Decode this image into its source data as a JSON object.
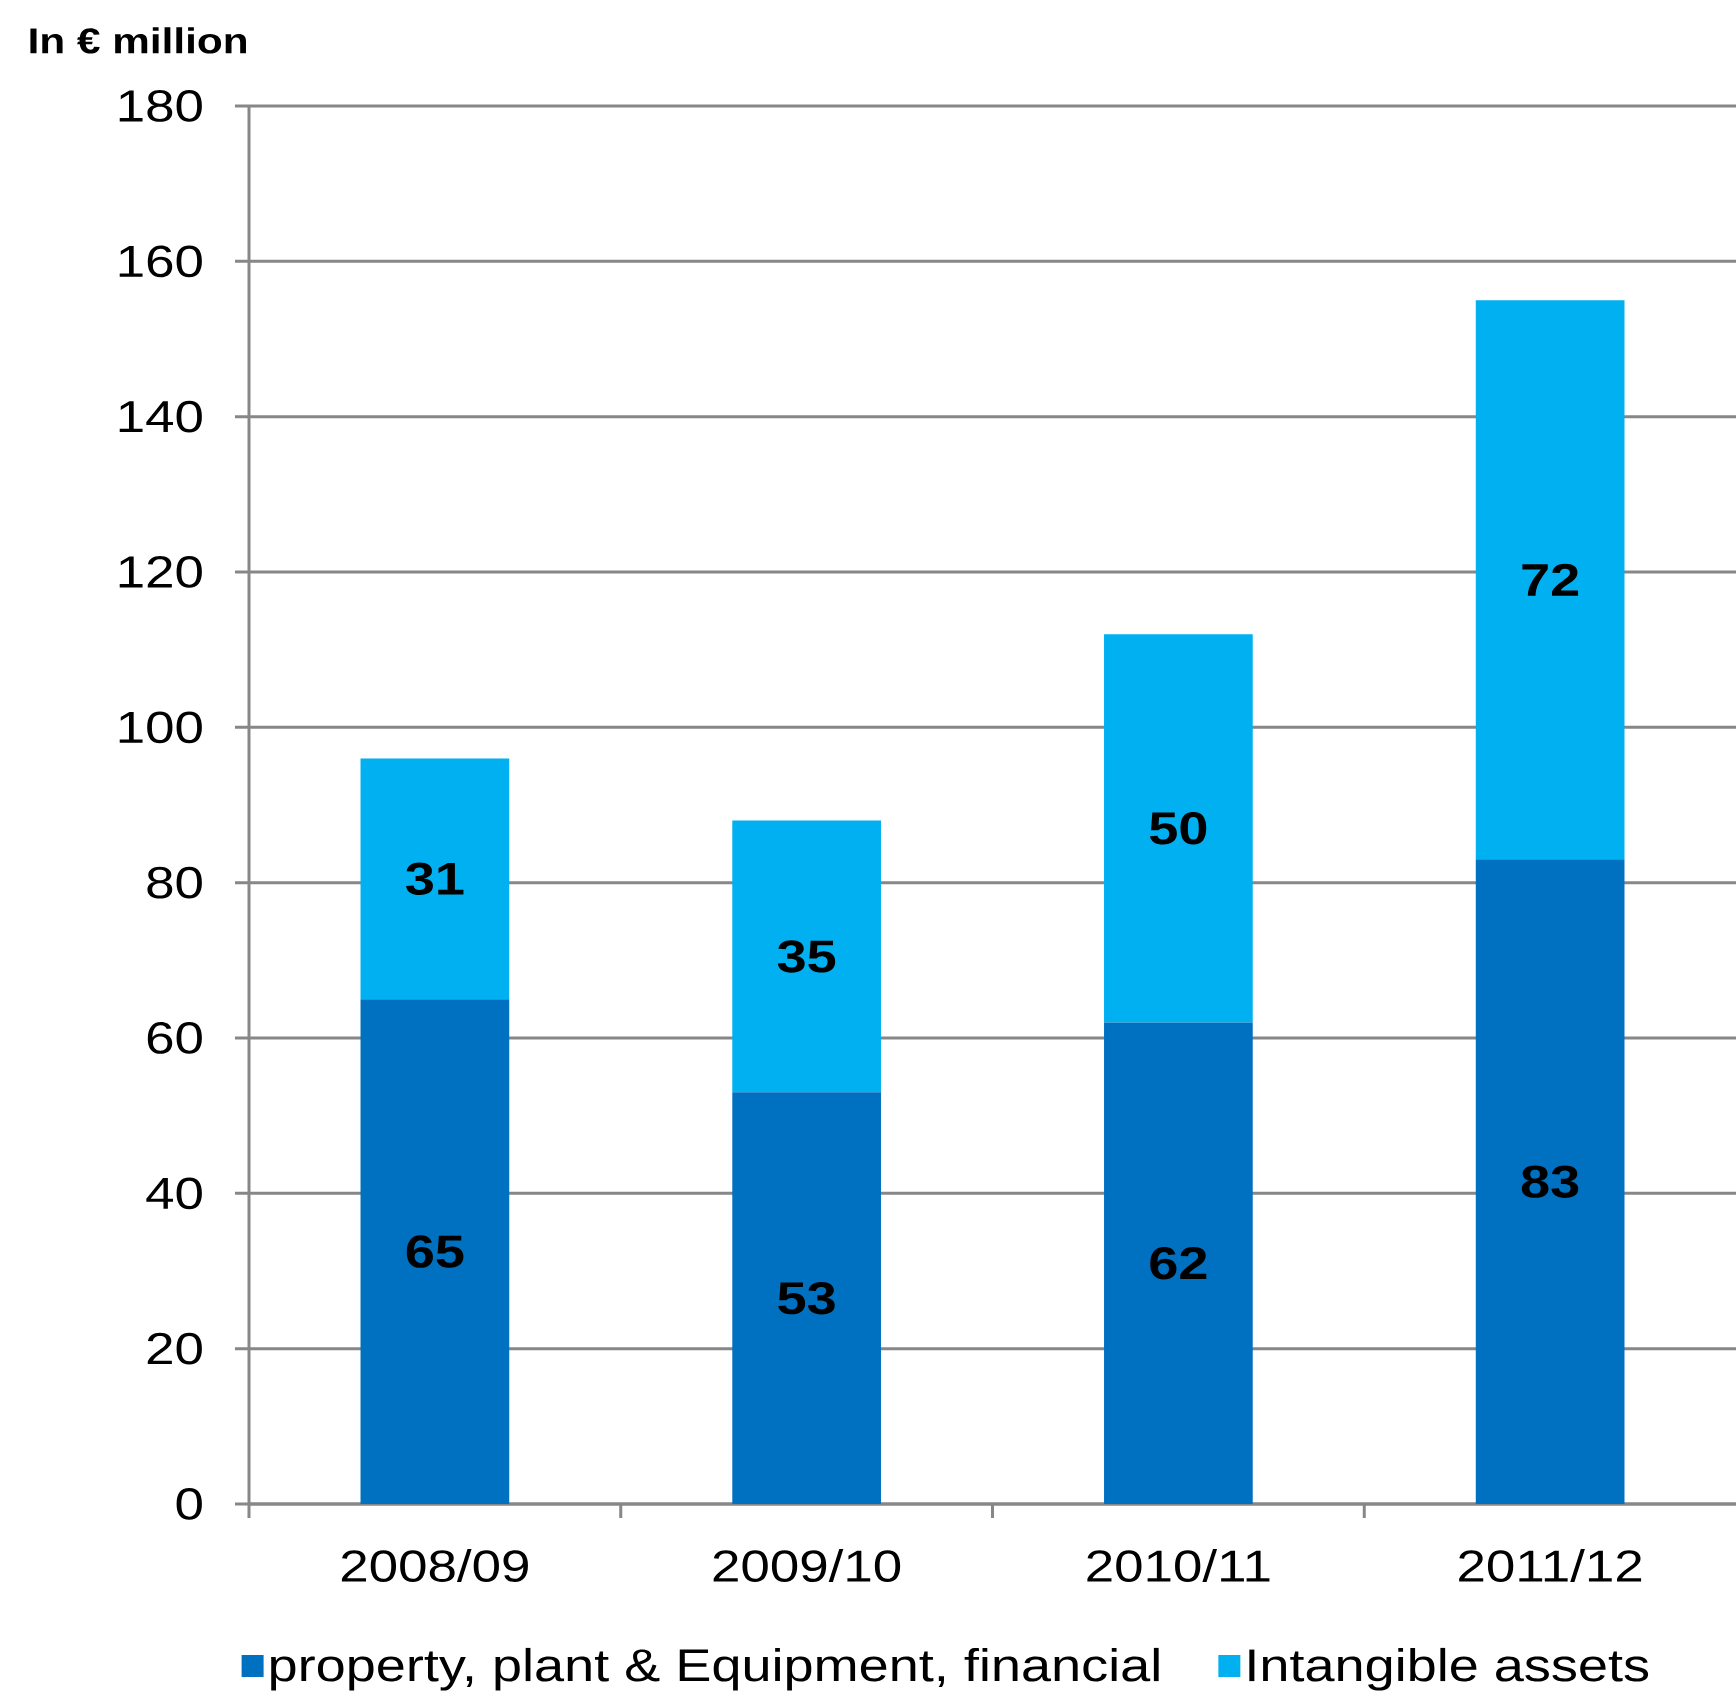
{
  "chart_data": {
    "type": "bar",
    "stacked": true,
    "ylabel": "In € million",
    "categories": [
      "2008/09",
      "2009/10",
      "2010/11",
      "2011/12"
    ],
    "series": [
      {
        "name": "property, plant & Equipment, financial",
        "color": "#0070c0",
        "values": [
          65,
          53,
          62,
          83
        ]
      },
      {
        "name": "Intangible assets",
        "color": "#00b0f0",
        "values": [
          31,
          35,
          50,
          72
        ]
      }
    ],
    "ylim": [
      0,
      180
    ],
    "yticks": [
      0,
      20,
      40,
      60,
      80,
      100,
      120,
      140,
      160,
      180
    ],
    "grid": "y",
    "legend": "bottom",
    "data_labels": true
  }
}
